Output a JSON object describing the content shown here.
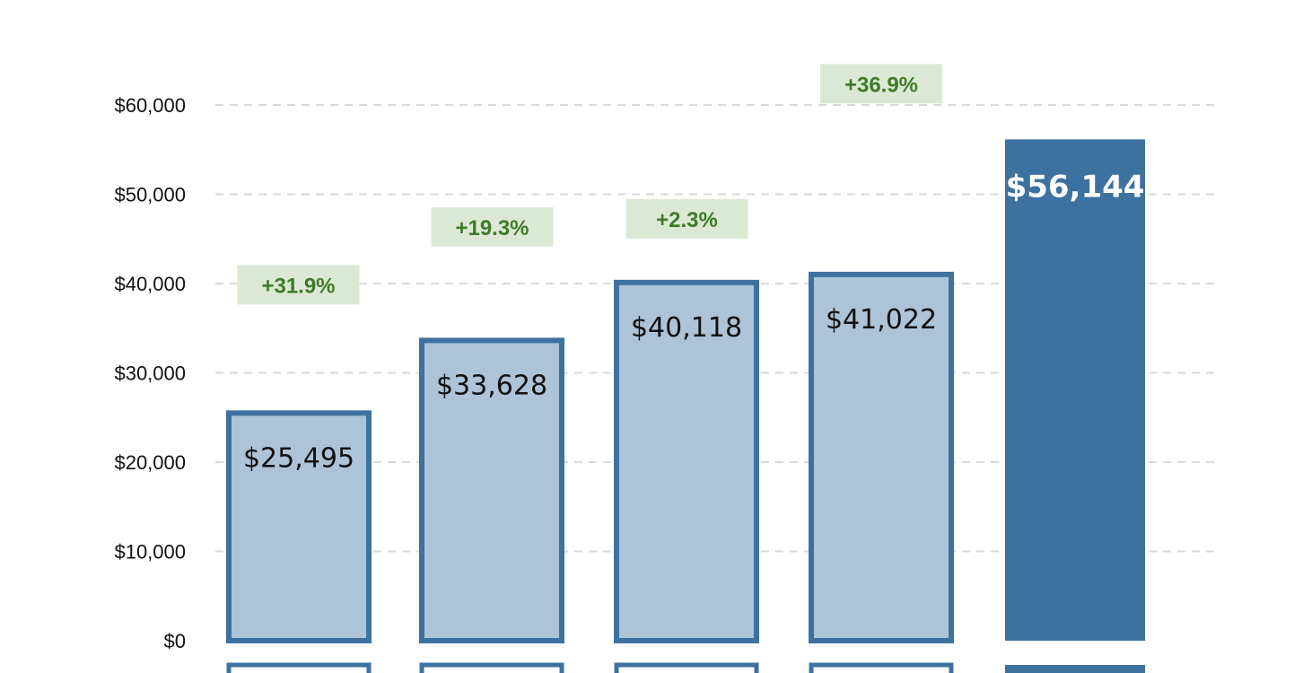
{
  "chart_data": {
    "type": "bar",
    "categories": [
      "",
      "",
      "",
      "",
      ""
    ],
    "values": [
      25495,
      33628,
      40118,
      41022,
      56144
    ],
    "value_labels": [
      "$25,495",
      "$33,628",
      "$40,118",
      "$41,022",
      "$56,144"
    ],
    "growth_labels": [
      "+31.9%",
      "+19.3%",
      "+2.3%",
      "+36.9%"
    ],
    "highlight_index": 4,
    "title": "",
    "xlabel": "",
    "ylabel": "",
    "ylim": [
      0,
      60000
    ],
    "y_ticks": [
      0,
      10000,
      20000,
      30000,
      40000,
      50000,
      60000
    ],
    "y_tick_labels": [
      "$0",
      "$10,000",
      "$20,000",
      "$30,000",
      "$40,000",
      "$50,000",
      "$60,000"
    ],
    "grid": true,
    "legend": "none",
    "colors": {
      "bar_fill": "#adc3d8",
      "bar_stroke": "#3d71a0",
      "highlight_fill": "#3d71a0",
      "growth_bg": "#dbe9d4",
      "growth_text": "#3f7a2a",
      "grid": "#d9d9d9"
    }
  }
}
